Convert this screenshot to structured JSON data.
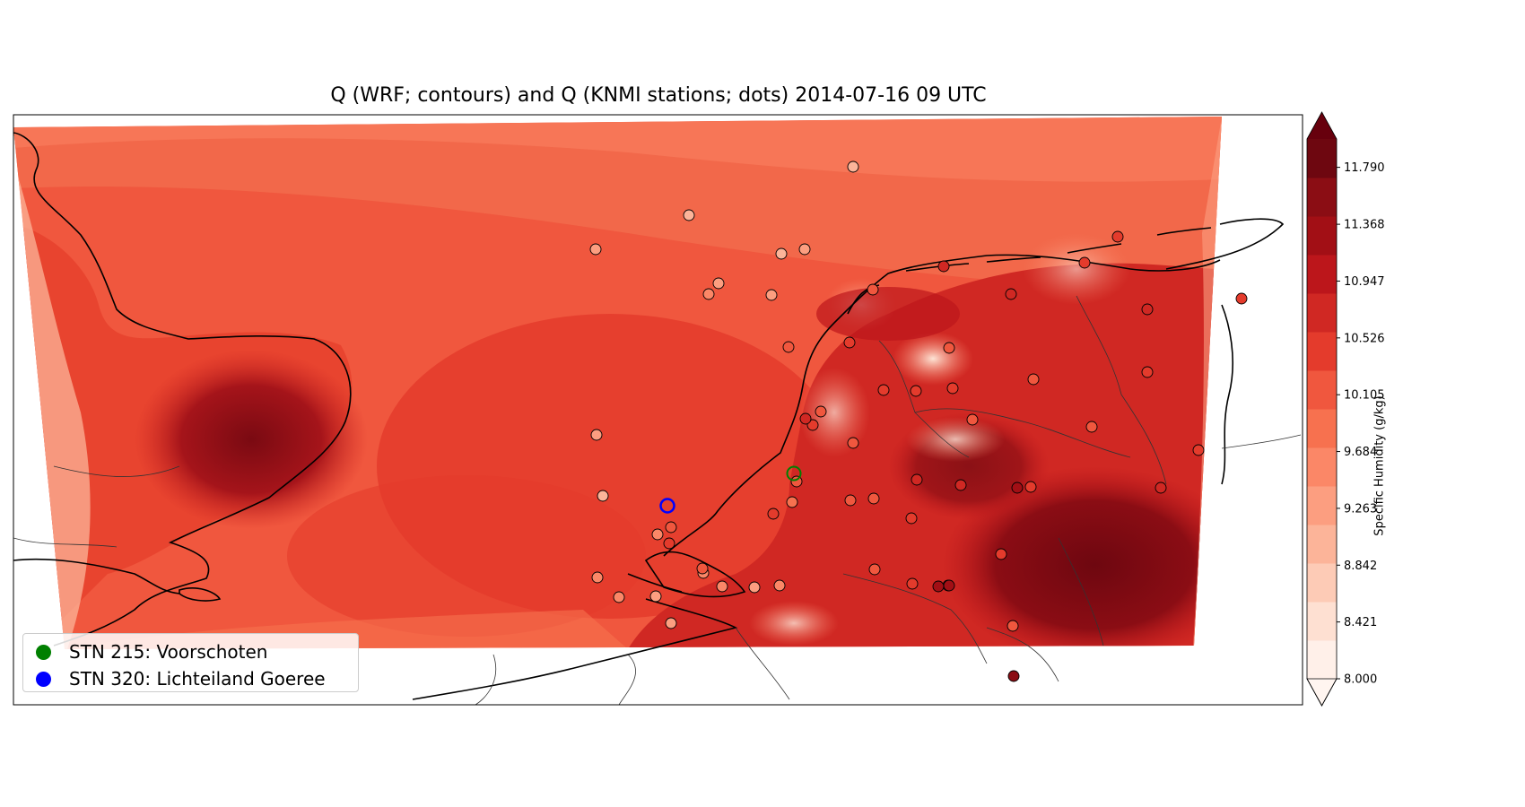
{
  "title": "Q (WRF; contours) and Q (KNMI stations; dots) 2014-07-16 09 UTC",
  "legend": {
    "items": [
      {
        "label": "STN 215: Voorschoten",
        "color": "#008000"
      },
      {
        "label": "STN 320: Lichteiland Goeree",
        "color": "#0000ff"
      }
    ]
  },
  "colorbar": {
    "label": "Specific Humidity (g/kg)",
    "ticks": [
      "8.000",
      "8.421",
      "8.842",
      "9.263",
      "9.684",
      "10.105",
      "10.526",
      "10.947",
      "11.368",
      "11.790"
    ],
    "range": [
      8.0,
      12.0
    ],
    "extend": "both",
    "colors": [
      "#fff0e9",
      "#fee0d2",
      "#fdcbb6",
      "#fcb499",
      "#fc9e80",
      "#fb8767",
      "#f7714f",
      "#f0573e",
      "#e43b2c",
      "#d02823",
      "#bc161b",
      "#a20f15",
      "#8b0d14",
      "#6e0710"
    ]
  },
  "chart_data": {
    "type": "map",
    "colormap": "Reds",
    "stations": [
      {
        "q": 9.0
      },
      {
        "q": 8.9
      },
      {
        "q": 9.3
      },
      {
        "q": 9.0
      },
      {
        "q": 9.2
      },
      {
        "q": 9.4
      },
      {
        "q": 9.6
      },
      {
        "q": 9.4
      },
      {
        "q": 9.3
      },
      {
        "q": 9.1
      },
      {
        "q": 9.5
      },
      {
        "q": 9.6
      },
      {
        "q": 9.7
      },
      {
        "q": 9.2
      },
      {
        "q": 9.4
      },
      {
        "q": 9.7
      },
      {
        "q": 9.5
      },
      {
        "q": 10.2
      },
      {
        "q": 9.3
      },
      {
        "q": 9.6
      },
      {
        "q": 10.3
      },
      {
        "q": 10.0
      },
      {
        "q": 10.1
      },
      {
        "q": 9.9
      },
      {
        "q": 10.4
      },
      {
        "q": 10.2
      },
      {
        "q": 10.5
      },
      {
        "q": 10.6
      },
      {
        "q": 10.1
      },
      {
        "q": 10.2
      },
      {
        "q": 10.3
      },
      {
        "q": 10.5
      },
      {
        "q": 10.4
      },
      {
        "q": 10.0
      },
      {
        "q": 10.2
      },
      {
        "q": 10.4
      },
      {
        "q": 10.6
      },
      {
        "q": 10.5
      },
      {
        "q": 10.3
      },
      {
        "q": 10.1
      },
      {
        "q": 10.0
      },
      {
        "q": 10.2
      },
      {
        "q": 10.4
      },
      {
        "q": 10.6
      },
      {
        "q": 10.5
      },
      {
        "q": 10.8
      },
      {
        "q": 10.3
      },
      {
        "q": 10.1
      },
      {
        "q": 10.0
      },
      {
        "q": 10.5
      },
      {
        "q": 10.2
      },
      {
        "q": 10.1
      },
      {
        "q": 10.6
      },
      {
        "q": 10.3
      },
      {
        "q": 10.4
      },
      {
        "q": 10.6
      },
      {
        "q": 10.2
      },
      {
        "q": 10.4
      },
      {
        "q": 11.2
      },
      {
        "q": 11.5
      },
      {
        "q": 10.7
      },
      {
        "q": 11.3
      },
      {
        "q": 11.4
      }
    ]
  }
}
